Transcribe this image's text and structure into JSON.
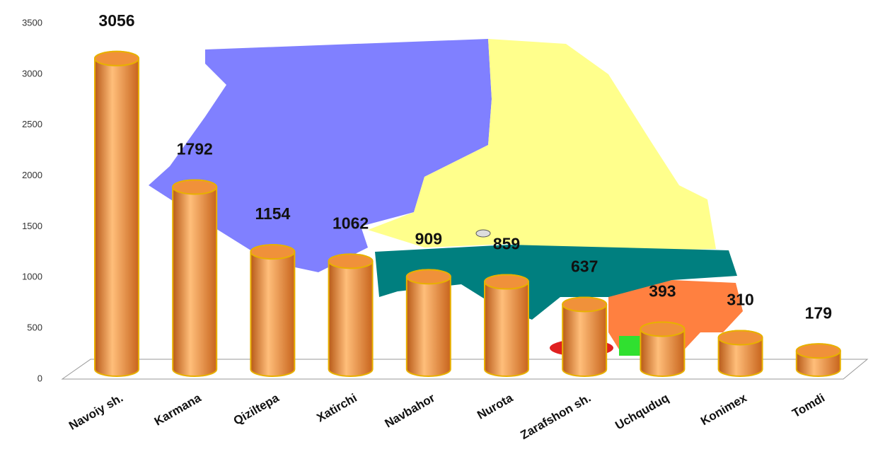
{
  "chart_data": {
    "type": "bar",
    "categories": [
      "Navoiy sh.",
      "Karmana",
      "Qiziltepa",
      "Xatirchi",
      "Navbahor",
      "Nurota",
      "Zarafshon sh.",
      "Uchquduq",
      "Konimex",
      "Tomdi"
    ],
    "values": [
      3056,
      1792,
      1154,
      1062,
      909,
      859,
      637,
      393,
      310,
      179
    ],
    "color": "#f0913a",
    "ylim": [
      0,
      3500
    ],
    "yticks": [
      0,
      500,
      1000,
      1500,
      2000,
      2500,
      3000,
      3500
    ],
    "grid": false
  }
}
